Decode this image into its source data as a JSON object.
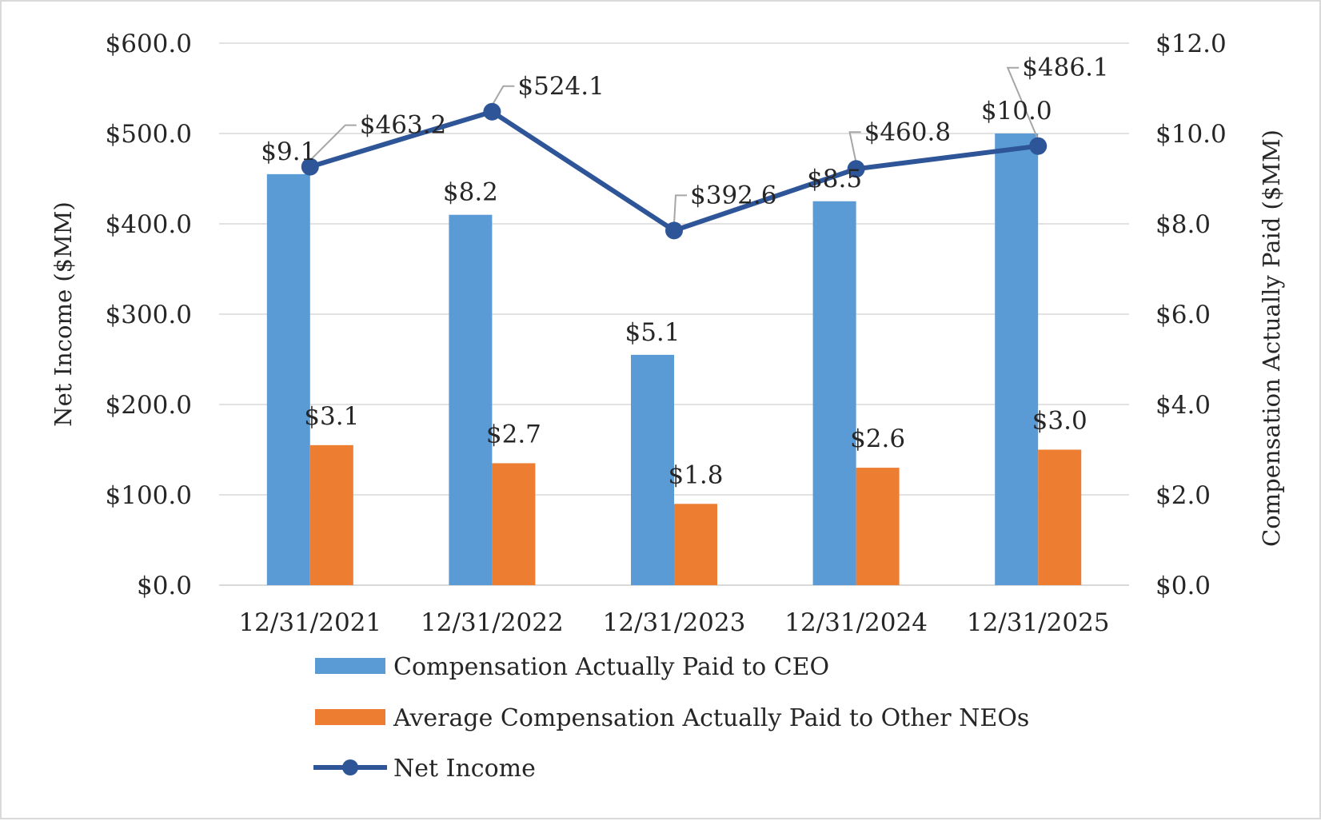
{
  "chart_data": {
    "type": "bar",
    "categories": [
      "12/31/2021",
      "12/31/2022",
      "12/31/2023",
      "12/31/2024",
      "12/31/2025"
    ],
    "series": [
      {
        "name": "Compensation Actually Paid to CEO",
        "kind": "bar",
        "axis": "right",
        "color": "#5b9bd5",
        "values": [
          9.1,
          8.2,
          5.1,
          8.5,
          10.0
        ],
        "labels": [
          "$9.1",
          "$8.2",
          "$5.1",
          "$8.5",
          "$10.0"
        ]
      },
      {
        "name": "Average Compensation Actually Paid to Other NEOs",
        "kind": "bar",
        "axis": "right",
        "color": "#ed7d31",
        "values": [
          3.1,
          2.7,
          1.8,
          2.6,
          3.0
        ],
        "labels": [
          "$3.1",
          "$2.7",
          "$1.8",
          "$2.6",
          "$3.0"
        ]
      },
      {
        "name": "Net Income",
        "kind": "line",
        "axis": "left",
        "color": "#2e5597",
        "values": [
          463.2,
          524.1,
          392.6,
          460.8,
          486.1
        ],
        "labels": [
          "$463.2",
          "$524.1",
          "$392.6",
          "$460.8",
          "$486.1"
        ]
      }
    ],
    "left_axis": {
      "title": "Net Income ($MM)",
      "range": [
        0,
        600
      ],
      "ticks": [
        "$0.0",
        "$100.0",
        "$200.0",
        "$300.0",
        "$400.0",
        "$500.0",
        "$600.0"
      ]
    },
    "right_axis": {
      "title": "Compensation Actually Paid ($MM)",
      "range": [
        0,
        12
      ],
      "ticks": [
        "$0.0",
        "$2.0",
        "$4.0",
        "$6.0",
        "$8.0",
        "$10.0",
        "$12.0"
      ]
    },
    "grid": true,
    "legend_position": "bottom"
  }
}
